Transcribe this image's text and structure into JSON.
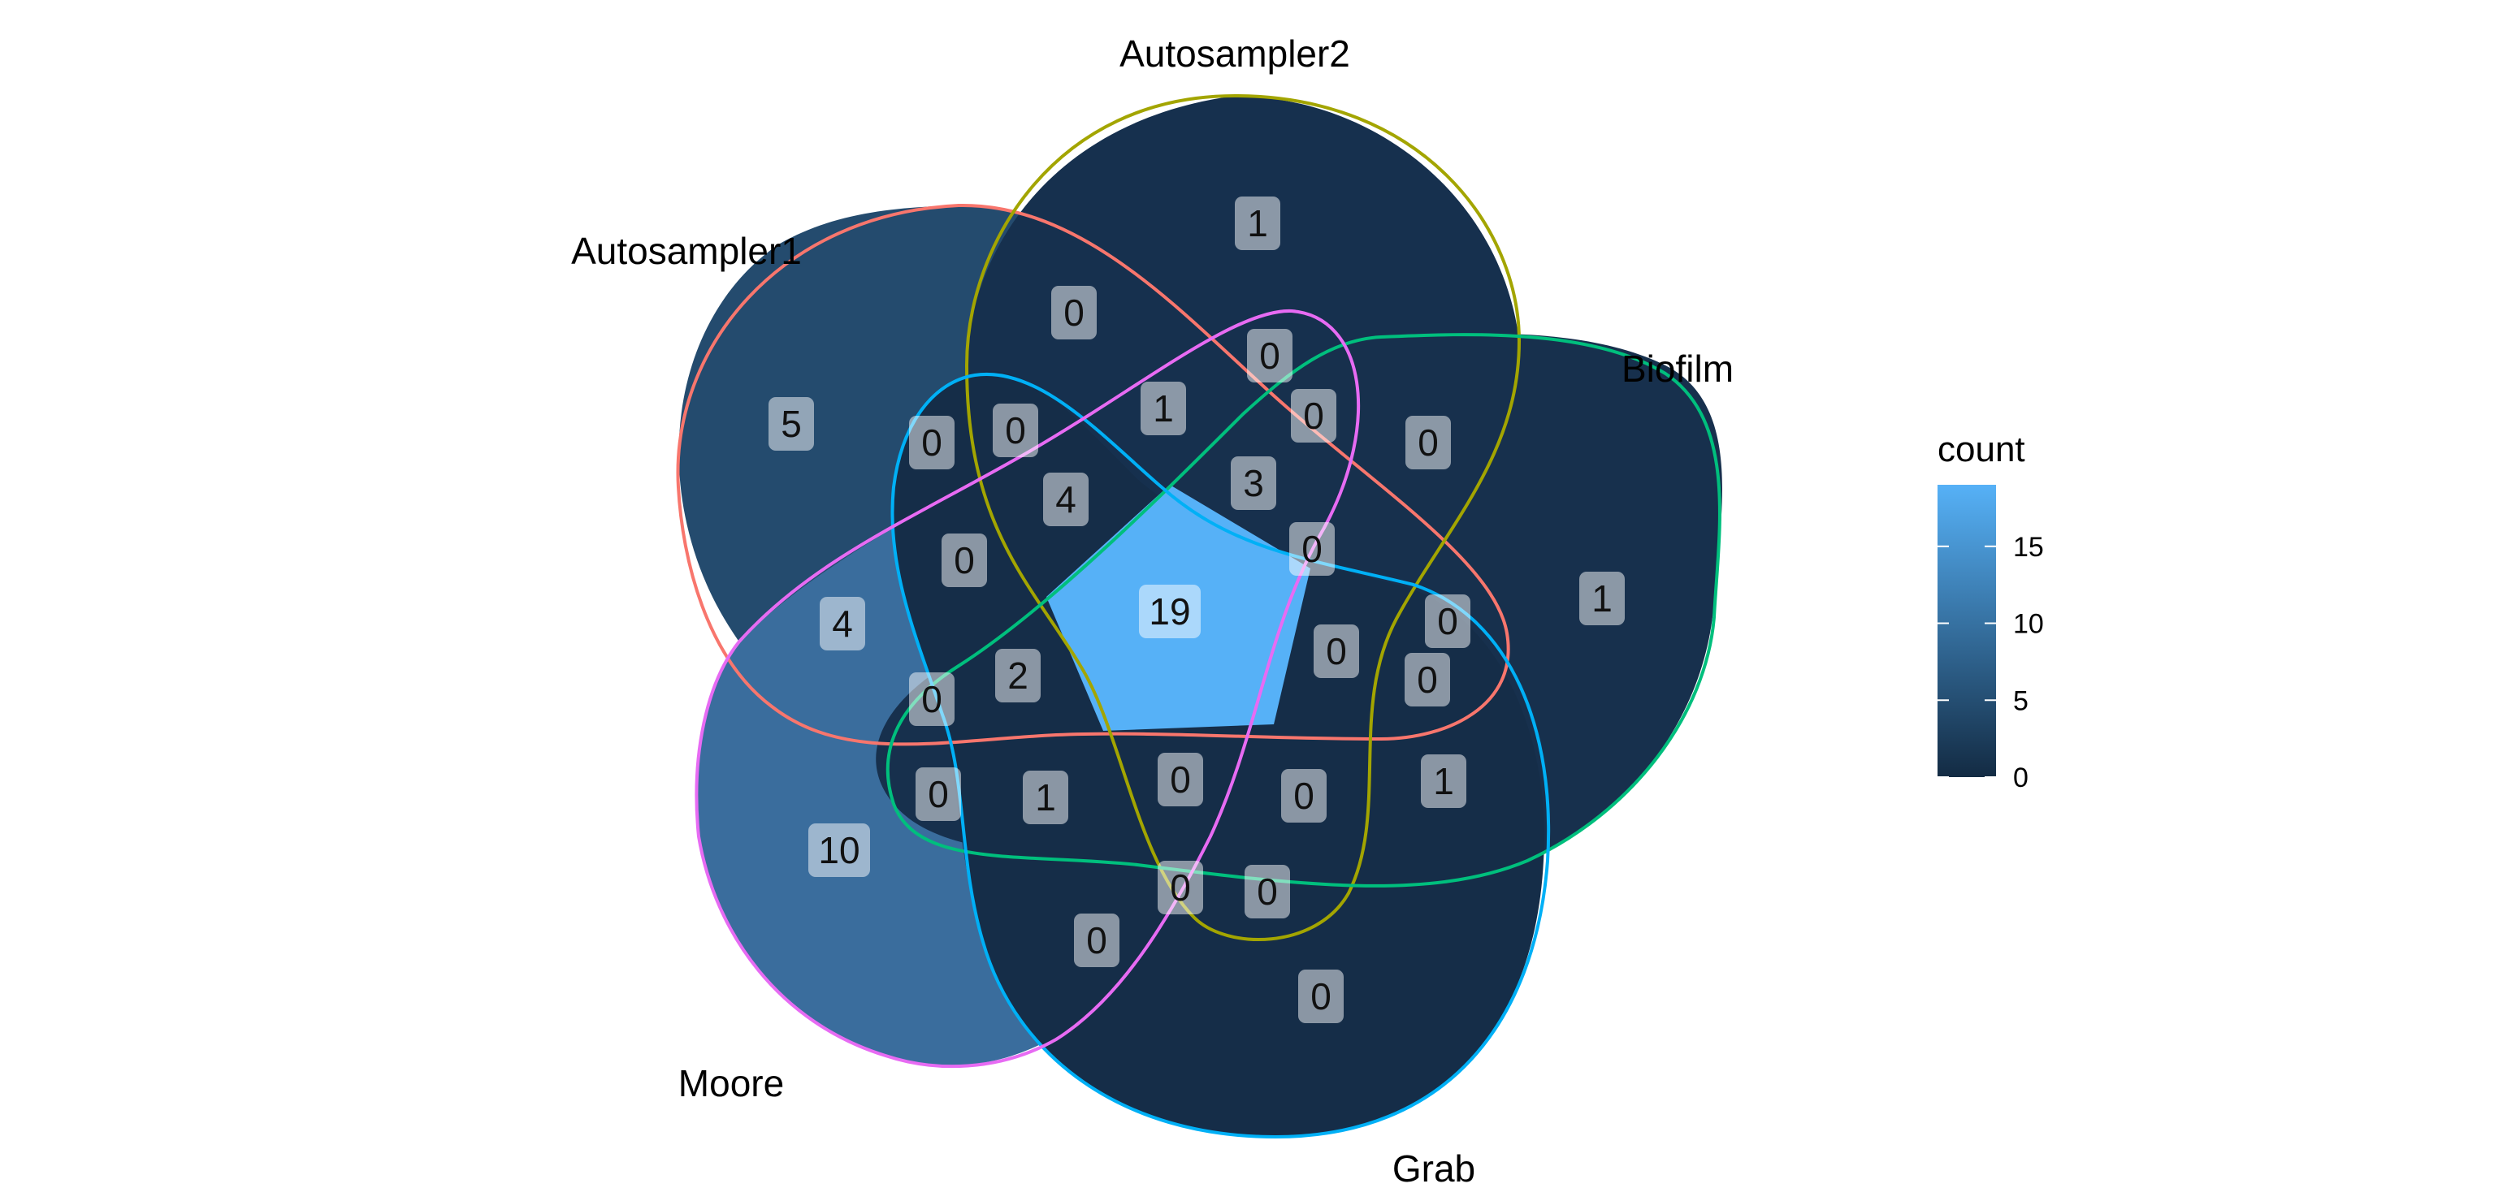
{
  "sets": [
    {
      "id": "A",
      "label": "Autosampler1",
      "color": "#F8766D"
    },
    {
      "id": "B",
      "label": "Autosampler2",
      "color": "#A3A500"
    },
    {
      "id": "C",
      "label": "Biofilm",
      "color": "#00BF7D"
    },
    {
      "id": "D",
      "label": "Grab",
      "color": "#00B0F6"
    },
    {
      "id": "E",
      "label": "Moore",
      "color": "#E76BF3"
    }
  ],
  "regions": [
    {
      "sets": "A",
      "count": "5"
    },
    {
      "sets": "B",
      "count": "1"
    },
    {
      "sets": "C",
      "count": "1"
    },
    {
      "sets": "D",
      "count": "0"
    },
    {
      "sets": "E",
      "count": "10"
    },
    {
      "sets": "A-B",
      "count": "0"
    },
    {
      "sets": "A-B-E",
      "count": "0"
    },
    {
      "sets": "A-B-D-E",
      "count": "1"
    },
    {
      "sets": "A-B-C",
      "count": "0"
    },
    {
      "sets": "A-B-C-E",
      "count": "0"
    },
    {
      "sets": "A-D-E",
      "count": "0"
    },
    {
      "sets": "A-B-D",
      "count": "0"
    },
    {
      "sets": "A-B-C-D-E-outer",
      "count": "4"
    },
    {
      "sets": "A-B-C-D",
      "count": "3"
    },
    {
      "sets": "B-C",
      "count": "0"
    },
    {
      "sets": "A-E",
      "count": "0"
    },
    {
      "sets": "A-C",
      "count": "0"
    },
    {
      "sets": "A-E-only",
      "count": "4"
    },
    {
      "sets": "A-B-C-D-E",
      "count": "19"
    },
    {
      "sets": "B-C-D",
      "count": "0"
    },
    {
      "sets": "A-C-D",
      "count": "0"
    },
    {
      "sets": "A-C-E",
      "count": "0"
    },
    {
      "sets": "A-C-D-E",
      "count": "2"
    },
    {
      "sets": "A-D",
      "count": "1"
    },
    {
      "sets": "C-D",
      "count": "1"
    },
    {
      "sets": "C-E",
      "count": "0"
    },
    {
      "sets": "C-D-E",
      "count": "0"
    },
    {
      "sets": "B-C-D-E",
      "count": "0"
    },
    {
      "sets": "B-D-E",
      "count": "0"
    },
    {
      "sets": "B-D",
      "count": "0"
    },
    {
      "sets": "B-E",
      "count": "0"
    },
    {
      "sets": "D-E",
      "count": "0"
    },
    {
      "sets": "C-E-B",
      "count": "0"
    }
  ],
  "legend": {
    "title": "count",
    "ticks": [
      "0",
      "5",
      "10",
      "15"
    ],
    "low_color": "#132B43",
    "high_color": "#56B1F7"
  }
}
